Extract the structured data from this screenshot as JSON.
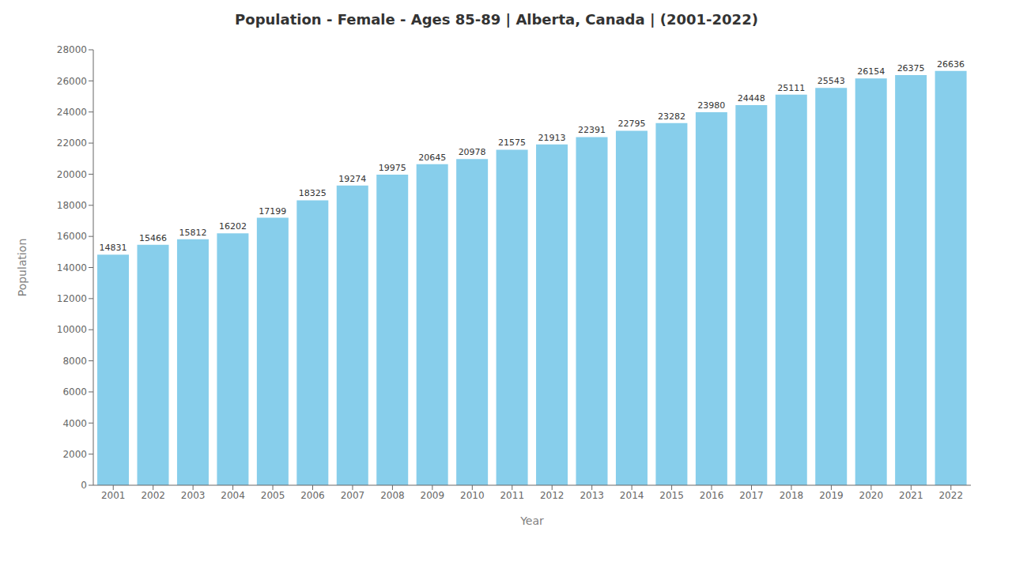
{
  "chart_data": {
    "type": "bar",
    "title": "Population - Female - Ages 85-89 | Alberta, Canada |  (2001-2022)",
    "xlabel": "Year",
    "ylabel": "Population",
    "categories": [
      "2001",
      "2002",
      "2003",
      "2004",
      "2005",
      "2006",
      "2007",
      "2008",
      "2009",
      "2010",
      "2011",
      "2012",
      "2013",
      "2014",
      "2015",
      "2016",
      "2017",
      "2018",
      "2019",
      "2020",
      "2021",
      "2022"
    ],
    "values": [
      14831,
      15466,
      15812,
      16202,
      17199,
      18325,
      19274,
      19975,
      20645,
      20978,
      21575,
      21913,
      22391,
      22795,
      23282,
      23980,
      24448,
      25111,
      25543,
      26154,
      26375,
      26636
    ],
    "color": "#87CEEB",
    "ylim": [
      0,
      28000
    ],
    "yticks": [
      0,
      2000,
      4000,
      6000,
      8000,
      10000,
      12000,
      14000,
      16000,
      18000,
      20000,
      22000,
      24000,
      26000,
      28000
    ],
    "grid": false,
    "data_labels": true
  }
}
